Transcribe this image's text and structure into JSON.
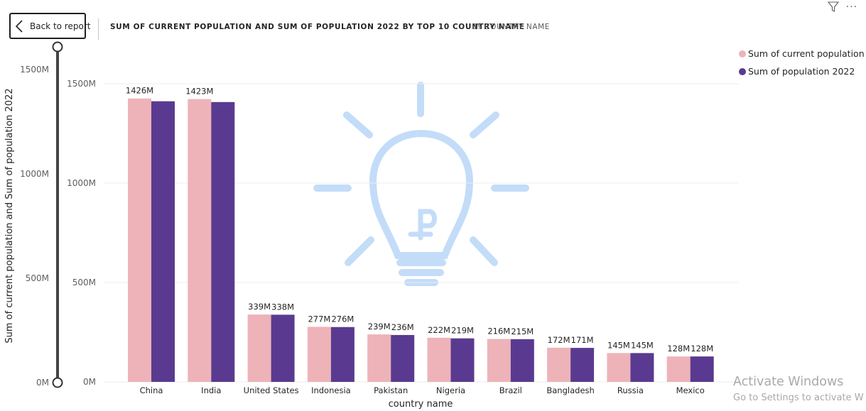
{
  "back_button": {
    "label": "Back to report"
  },
  "header": {
    "title": "SUM OF CURRENT POPULATION AND SUM OF POPULATION 2022 BY TOP 10 COUNTRY NAME",
    "subtitle": "BY COUNTRY NAME"
  },
  "slider_axis": {
    "ticks": [
      "1500M",
      "1000M",
      "500M",
      "0M"
    ]
  },
  "windows_watermark": {
    "line1": "Activate Windows",
    "line2": "Go to Settings to activate W"
  },
  "colors": {
    "current": "#eeb3b8",
    "pop2022": "#5a3a90",
    "watermark": "#b9d6f7"
  },
  "chart_data": {
    "type": "bar",
    "xlabel": "country name",
    "ylabel": "Sum of current population and Sum of population 2022",
    "ylim": [
      0,
      1500
    ],
    "yticks": [
      "1500M",
      "1000M",
      "500M",
      "0M"
    ],
    "ytick_values": [
      1500,
      1000,
      500,
      0
    ],
    "legend_position": "top-right",
    "categories": [
      "China",
      "India",
      "United States",
      "Indonesia",
      "Pakistan",
      "Nigeria",
      "Brazil",
      "Bangladesh",
      "Russia",
      "Mexico"
    ],
    "series": [
      {
        "name": "Sum of current population",
        "values": [
          1426,
          1423,
          339,
          277,
          239,
          222,
          216,
          172,
          145,
          128
        ],
        "labels": [
          "1426M",
          "1423M",
          "339M",
          "277M",
          "239M",
          "222M",
          "216M",
          "172M",
          "145M",
          "128M"
        ]
      },
      {
        "name": "Sum of population 2022",
        "values": [
          1412,
          1408,
          338,
          276,
          236,
          219,
          215,
          171,
          145,
          128
        ],
        "labels": [
          "",
          "",
          "338M",
          "276M",
          "236M",
          "219M",
          "215M",
          "171M",
          "145M",
          "128M"
        ]
      }
    ]
  }
}
